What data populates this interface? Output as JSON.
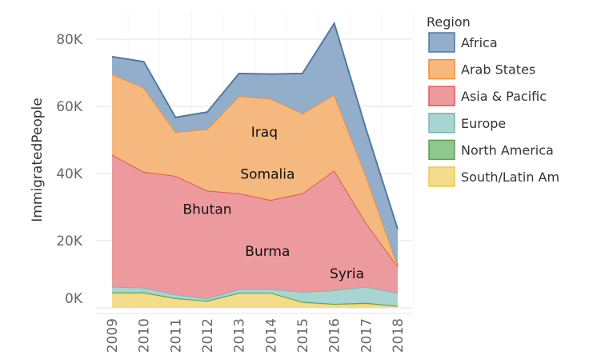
{
  "chart_data": {
    "type": "area",
    "stacked": true,
    "title": "",
    "xlabel": "",
    "ylabel": "ImmigratedPeople",
    "ylim": [
      0,
      85000
    ],
    "yticks": [
      0,
      20000,
      40000,
      60000,
      80000
    ],
    "ytick_labels": [
      "0K",
      "20K",
      "40K",
      "60K",
      "80K"
    ],
    "x": [
      "2009",
      "2010",
      "2011",
      "2012",
      "2013",
      "2014",
      "2015",
      "2016",
      "2017",
      "2018"
    ],
    "legend": {
      "title": "Region",
      "placement": "right"
    },
    "series": [
      {
        "name": "South/Latin Am",
        "label": "South/Latin Am",
        "fill": "#F3DC8C",
        "stroke": "#EDC948",
        "values": [
          4400,
          4400,
          2800,
          2000,
          4400,
          4400,
          1600,
          1000,
          1200,
          500
        ]
      },
      {
        "name": "North America",
        "label": "North America",
        "fill": "#8FC78C",
        "stroke": "#59A14F",
        "values": [
          200,
          200,
          100,
          100,
          100,
          100,
          200,
          200,
          300,
          100
        ]
      },
      {
        "name": "Europe",
        "label": "Europe",
        "fill": "#A8D5D1",
        "stroke": "#76B7B2",
        "values": [
          1700,
          1400,
          1100,
          700,
          1100,
          1100,
          3000,
          4000,
          4800,
          3800
        ]
      },
      {
        "name": "Asia & Pacific",
        "label": "Asia & Pacific",
        "fill": "#EC9A9E",
        "stroke": "#E15759",
        "values": [
          39300,
          34500,
          35300,
          32100,
          28500,
          26500,
          29300,
          35700,
          19000,
          7900
        ]
      },
      {
        "name": "Arab States",
        "label": "Arab States",
        "fill": "#F5B87E",
        "stroke": "#F28E2B",
        "values": [
          24000,
          25100,
          13100,
          18300,
          29000,
          30200,
          23800,
          22600,
          14000,
          400
        ]
      },
      {
        "name": "Africa",
        "label": "Africa",
        "fill": "#93AECB",
        "stroke": "#4E79A7",
        "values": [
          5200,
          7700,
          4300,
          5100,
          6700,
          7300,
          11900,
          21200,
          14000,
          10700
        ]
      }
    ],
    "annotations": [
      {
        "text": "Iraq",
        "x": 2013.8,
        "y": 51000
      },
      {
        "text": "Somalia",
        "x": 2013.9,
        "y": 38500
      },
      {
        "text": "Bhutan",
        "x": 2012.0,
        "y": 28000
      },
      {
        "text": "Burma",
        "x": 2013.9,
        "y": 15500
      },
      {
        "text": "Syria",
        "x": 2016.4,
        "y": 8800
      }
    ]
  }
}
